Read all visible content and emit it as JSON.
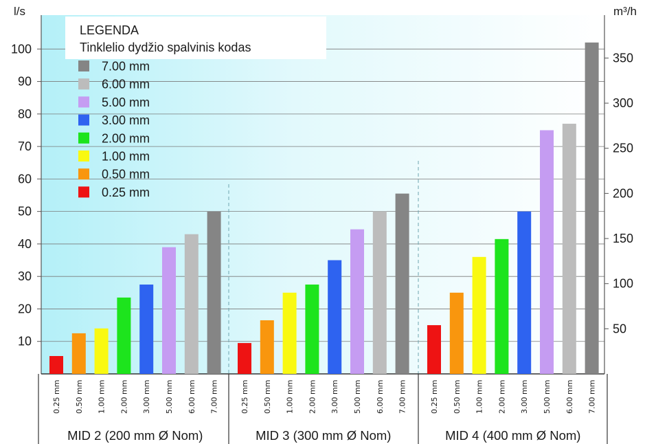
{
  "chart_data": {
    "type": "bar",
    "y_label_left": "l/s",
    "y_label_right": "m³/h",
    "ylim": [
      0,
      110
    ],
    "y_ticks_left": [
      10,
      20,
      30,
      40,
      50,
      60,
      70,
      80,
      90,
      100
    ],
    "y_ticks_right": [
      50,
      100,
      150,
      200,
      250,
      300,
      350
    ],
    "grid": true,
    "legend": {
      "position": "top-left",
      "title": "LEGENDA",
      "subtitle": "Tinklelio dydžio spalvinis kodas",
      "entries": [
        {
          "label": "7.00 mm",
          "color": "#858585"
        },
        {
          "label": "6.00 mm",
          "color": "#bcbcbc"
        },
        {
          "label": "5.00 mm",
          "color": "#c59cf2"
        },
        {
          "label": "3.00 mm",
          "color": "#2e63f0"
        },
        {
          "label": "2.00 mm",
          "color": "#1de41d"
        },
        {
          "label": "1.00 mm",
          "color": "#f9f911"
        },
        {
          "label": "0.50 mm",
          "color": "#f9960e"
        },
        {
          "label": "0.25 mm",
          "color": "#ee1313"
        }
      ]
    },
    "categories": [
      "0.25 mm",
      "0.50 mm",
      "1.00 mm",
      "2.00 mm",
      "3.00 mm",
      "5.00 mm",
      "6.00 mm",
      "7.00 mm"
    ],
    "colors": [
      "#ee1313",
      "#f9960e",
      "#f9f911",
      "#1de41d",
      "#2e63f0",
      "#c59cf2",
      "#bcbcbc",
      "#858585"
    ],
    "groups": [
      {
        "label": "MID 2   (200 mm Ø Nom)",
        "values": [
          5.5,
          12.5,
          14,
          23.5,
          27.5,
          39,
          43,
          50
        ]
      },
      {
        "label": "MID 3   (300 mm Ø Nom)",
        "values": [
          9.5,
          16.5,
          25,
          27.5,
          35,
          44.5,
          50,
          55.5
        ]
      },
      {
        "label": "MID 4   (400 mm Ø Nom)",
        "values": [
          15,
          25,
          36,
          41.5,
          50,
          75,
          77,
          102
        ]
      }
    ]
  }
}
